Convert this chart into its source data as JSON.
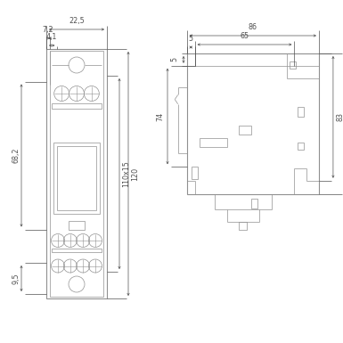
{
  "bg_color": "#ffffff",
  "line_color": "#909090",
  "dim_color": "#505050",
  "text_color": "#505050",
  "fig_width": 3.85,
  "fig_height": 3.85,
  "dpi": 100
}
